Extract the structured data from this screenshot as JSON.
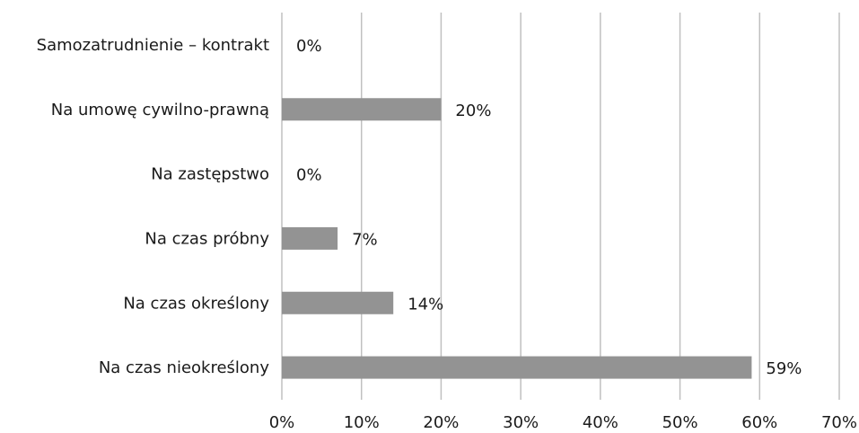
{
  "chart_data": {
    "type": "bar",
    "orientation": "horizontal",
    "categories": [
      "Samozatrudnienie – kontrakt",
      "Na umowę cywilno-prawną",
      "Na zastępstwo",
      "Na czas próbny",
      "Na czas określony",
      "Na czas nieokreślony"
    ],
    "values": [
      0,
      20,
      0,
      7,
      14,
      59
    ],
    "value_labels": [
      "0%",
      "20%",
      "0%",
      "7%",
      "14%",
      "59%"
    ],
    "color": "#939393",
    "xlim": [
      0,
      70
    ],
    "xticks": [
      {
        "value": 0,
        "label": "0%"
      },
      {
        "value": 10,
        "label": "10%"
      },
      {
        "value": 20,
        "label": "20%"
      },
      {
        "value": 30,
        "label": "30%"
      },
      {
        "value": 40,
        "label": "40%"
      },
      {
        "value": 50,
        "label": "50%"
      },
      {
        "value": 60,
        "label": "60%"
      },
      {
        "value": 70,
        "label": "70%"
      }
    ],
    "grid": true
  }
}
